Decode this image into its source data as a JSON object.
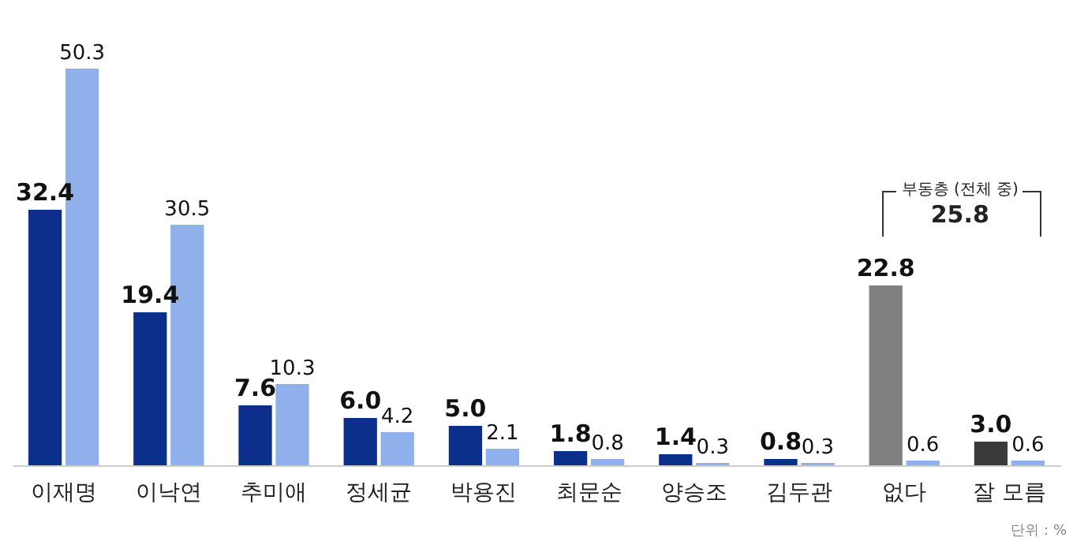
{
  "chart_data": {
    "type": "bar",
    "categories": [
      "이재명",
      "이낙연",
      "추미애",
      "정세균",
      "박용진",
      "최문순",
      "양승조",
      "김두관",
      "없다",
      "잘 모름"
    ],
    "series": [
      {
        "colors": [
          "#0b2f8a",
          "#0b2f8a",
          "#0b2f8a",
          "#0b2f8a",
          "#0b2f8a",
          "#0b2f8a",
          "#0b2f8a",
          "#0b2f8a",
          "#808080",
          "#3a3a3a"
        ],
        "values": [
          32.4,
          19.4,
          7.6,
          6.0,
          5.0,
          1.8,
          1.4,
          0.8,
          22.8,
          3.0
        ],
        "value_labels": [
          "32.4",
          "19.4",
          "7.6",
          "6.0",
          "5.0",
          "1.8",
          "1.4",
          "0.8",
          "22.8",
          "3.0"
        ]
      },
      {
        "color": "#8fb0ea",
        "values": [
          50.3,
          30.5,
          10.3,
          4.2,
          2.1,
          0.8,
          0.3,
          0.3,
          0.6,
          0.6
        ],
        "value_labels": [
          "50.3",
          "30.5",
          "10.3",
          "4.2",
          "2.1",
          "0.8",
          "0.3",
          "0.3",
          "0.6",
          "0.6"
        ]
      }
    ],
    "tick_labels": "x",
    "annotations": [
      "부동층 (전체 중)",
      "25.8",
      "단위 : %"
    ]
  }
}
